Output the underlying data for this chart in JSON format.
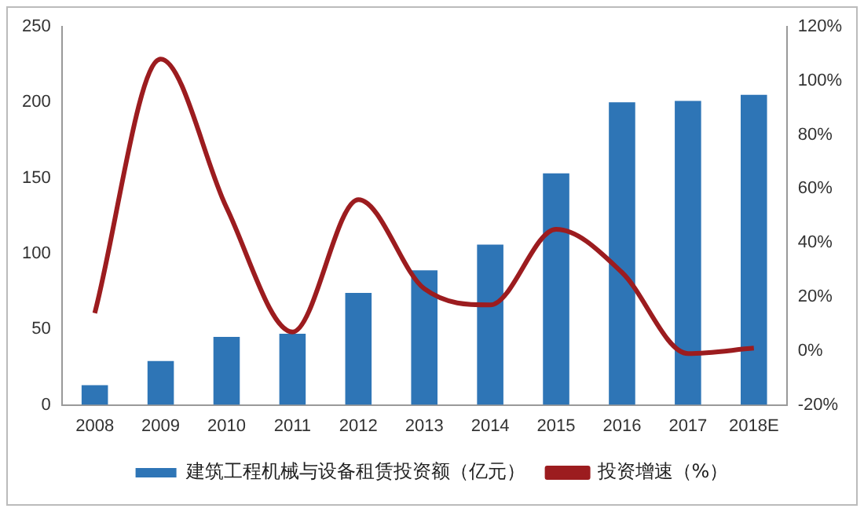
{
  "chart_data": {
    "type": "bar",
    "categories": [
      "2008",
      "2009",
      "2010",
      "2011",
      "2012",
      "2013",
      "2014",
      "2015",
      "2016",
      "2017",
      "2018E"
    ],
    "series": [
      {
        "name": "建筑工程机械与设备租赁投资额（亿元）",
        "color": "#2e75b6",
        "values": [
          13,
          29,
          45,
          47,
          74,
          89,
          106,
          153,
          200,
          201,
          205
        ]
      },
      {
        "name": "投资增速（%）",
        "type": "line",
        "axis": "y2",
        "color": "#9c1c1f",
        "values": [
          14,
          108,
          53,
          7,
          56,
          23,
          17,
          45,
          29,
          -1,
          1
        ]
      }
    ],
    "ylim": [
      0,
      250
    ],
    "yticks": [
      0,
      50,
      100,
      150,
      200,
      250
    ],
    "y2lim": [
      -20,
      120
    ],
    "y2ticks": [
      {
        "value": -20,
        "label": "-20%"
      },
      {
        "value": 0,
        "label": "0%"
      },
      {
        "value": 20,
        "label": "20%"
      },
      {
        "value": 40,
        "label": "40%"
      },
      {
        "value": 60,
        "label": "60%"
      },
      {
        "value": 80,
        "label": "80%"
      },
      {
        "value": 100,
        "label": "100%"
      },
      {
        "value": 120,
        "label": "120%"
      }
    ],
    "grid": false,
    "legend": "bottom",
    "marker": "none",
    "line_style": "solid"
  }
}
